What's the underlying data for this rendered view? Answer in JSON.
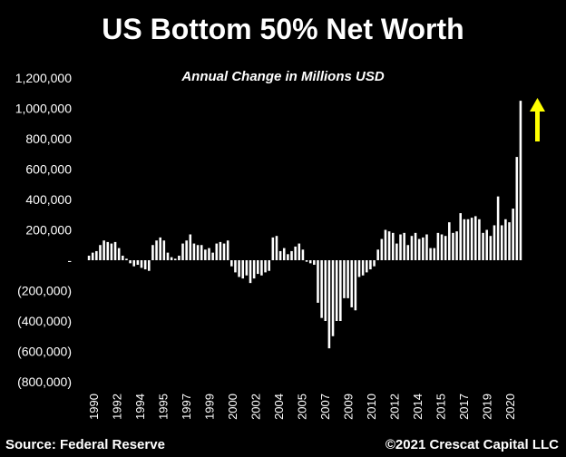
{
  "chart_data": {
    "type": "bar",
    "title": "US Bottom 50% Net Worth",
    "subtitle": "Annual Change in Millions USD",
    "source": "Source: Federal Reserve",
    "credit": "©2021 Crescat Capital LLC",
    "ylim": [
      -800000,
      1200000
    ],
    "yticks": [
      1200000,
      1000000,
      800000,
      600000,
      400000,
      200000,
      0,
      -200000,
      -400000,
      -600000,
      -800000
    ],
    "ytick_labels": [
      "1,200,000",
      "1,000,000",
      "800,000",
      "600,000",
      "400,000",
      "200,000",
      "-",
      "(200,000)",
      "(400,000)",
      "(600,000)",
      "(800,000)"
    ],
    "xtick_labels": [
      "1990",
      "1992",
      "1994",
      "1995",
      "1997",
      "1999",
      "2000",
      "2002",
      "2004",
      "2005",
      "2007",
      "2009",
      "2010",
      "2012",
      "2014",
      "2015",
      "2017",
      "2019",
      "2020"
    ],
    "bar_color": "#ffffff",
    "arrow_color": "#ffff00",
    "values": [
      30000,
      50000,
      60000,
      100000,
      130000,
      120000,
      110000,
      120000,
      80000,
      30000,
      10000,
      -20000,
      -40000,
      -30000,
      -50000,
      -60000,
      -70000,
      100000,
      130000,
      150000,
      130000,
      50000,
      20000,
      10000,
      30000,
      110000,
      130000,
      170000,
      110000,
      100000,
      100000,
      70000,
      80000,
      50000,
      110000,
      120000,
      110000,
      130000,
      -40000,
      -80000,
      -110000,
      -120000,
      -100000,
      -150000,
      -120000,
      -90000,
      -100000,
      -80000,
      -70000,
      150000,
      160000,
      60000,
      80000,
      40000,
      60000,
      90000,
      110000,
      70000,
      -10000,
      -20000,
      -30000,
      -280000,
      -380000,
      -400000,
      -580000,
      -500000,
      -400000,
      -400000,
      -250000,
      -250000,
      -310000,
      -330000,
      -110000,
      -100000,
      -80000,
      -60000,
      -40000,
      70000,
      140000,
      200000,
      190000,
      180000,
      110000,
      170000,
      180000,
      100000,
      160000,
      180000,
      140000,
      150000,
      170000,
      80000,
      80000,
      180000,
      170000,
      160000,
      250000,
      180000,
      190000,
      310000,
      270000,
      270000,
      280000,
      290000,
      270000,
      180000,
      200000,
      160000,
      230000,
      420000,
      230000,
      270000,
      250000,
      340000,
      680000,
      1050000
    ]
  }
}
